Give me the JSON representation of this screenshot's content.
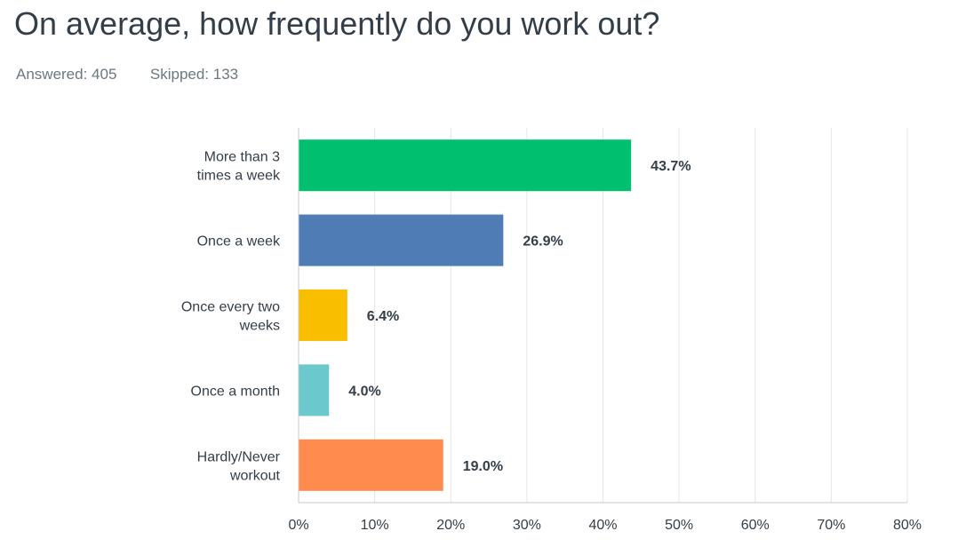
{
  "header": {
    "title": "On average, how frequently do you work out?",
    "answered": "Answered: 405",
    "skipped": "Skipped: 133"
  },
  "chart_data": {
    "type": "bar",
    "orientation": "horizontal",
    "title": "On average, how frequently do you work out?",
    "xlabel": "",
    "ylabel": "",
    "xlim": [
      0,
      80
    ],
    "grid": true,
    "categories": [
      [
        "More than 3",
        "times a week"
      ],
      [
        "Once a week"
      ],
      [
        "Once every two",
        "weeks"
      ],
      [
        "Once a month"
      ],
      [
        "Hardly/Never",
        "workout"
      ]
    ],
    "values": [
      43.7,
      26.9,
      6.4,
      4.0,
      19.0
    ],
    "value_labels": [
      "43.7%",
      "26.9%",
      "6.4%",
      "4.0%",
      "19.0%"
    ],
    "colors": [
      "#00bf6f",
      "#507cb6",
      "#f9be00",
      "#6bc8cd",
      "#ff8b4f"
    ],
    "ticks": [
      0,
      10,
      20,
      30,
      40,
      50,
      60,
      70,
      80
    ],
    "tick_labels": [
      "0%",
      "10%",
      "20%",
      "30%",
      "40%",
      "50%",
      "60%",
      "70%",
      "80%"
    ]
  }
}
